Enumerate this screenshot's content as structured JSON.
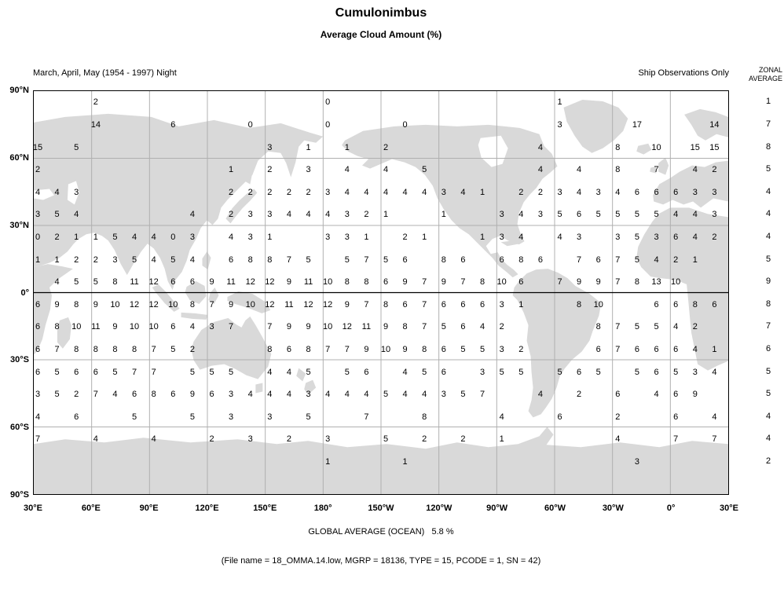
{
  "header": {
    "title": "Cumulonimbus",
    "subtitle": "Average Cloud Amount (%)",
    "period": "March, April, May (1954 - 1997) Night",
    "source": "Ship Observations Only",
    "zonal_line1": "ZONAL",
    "zonal_line2": "AVERAGE"
  },
  "footer": {
    "global_average": "GLOBAL AVERAGE (OCEAN)   5.8 %",
    "file_info": "(File name = 18_OMMA.14.low, MGRP = 18136, TYPE = 15, PCODE = 1, SN = 42)"
  },
  "colors": {
    "land": "#d9d9d9",
    "grid": "#b0b0b0",
    "equator": "#000000",
    "border": "#000000",
    "text": "#000000"
  },
  "chart_data": {
    "type": "heatmap",
    "title": "Cumulonimbus",
    "subtitle": "Average Cloud Amount (%)",
    "value_units": "% cloud amount",
    "column_definition": "column index n = longitude 30E + n x 10 degrees eastward (Pacific-centered map)",
    "lon_ticks": [
      "30°E",
      "60°E",
      "90°E",
      "120°E",
      "150°E",
      "180°",
      "150°W",
      "120°W",
      "90°W",
      "60°W",
      "30°W",
      "0°",
      "30°E"
    ],
    "lat_ticks": [
      "90°N",
      "60°N",
      "30°N",
      "0°",
      "30°S",
      "60°S",
      "90°S"
    ],
    "zonal_average_header": "ZONAL AVERAGE",
    "global_average_ocean": "5.8 %",
    "rows": [
      {
        "lat_band": "85N",
        "zonal_average": "1",
        "cells": {
          "3": "2",
          "15": "0",
          "27": "1"
        }
      },
      {
        "lat_band": "75N",
        "zonal_average": "7",
        "cells": {
          "3": "14",
          "7": "6",
          "11": "0",
          "15": "0",
          "19": "0",
          "27": "3",
          "31": "17",
          "35": "14"
        }
      },
      {
        "lat_band": "65N",
        "zonal_average": "8",
        "cells": {
          "0": "15",
          "2": "5",
          "12": "3",
          "14": "1",
          "16": "1",
          "18": "2",
          "26": "4",
          "30": "8",
          "32": "10",
          "34": "15",
          "35": "15"
        }
      },
      {
        "lat_band": "55N",
        "zonal_average": "5",
        "cells": {
          "0": "2",
          "10": "1",
          "12": "2",
          "14": "3",
          "16": "4",
          "18": "4",
          "20": "5",
          "26": "4",
          "28": "4",
          "30": "8",
          "32": "7",
          "34": "4",
          "35": "2"
        }
      },
      {
        "lat_band": "45N",
        "zonal_average": "4",
        "cells": {
          "0": "4",
          "1": "4",
          "2": "3",
          "10": "2",
          "11": "2",
          "12": "2",
          "13": "2",
          "14": "2",
          "15": "3",
          "16": "4",
          "17": "4",
          "18": "4",
          "19": "4",
          "20": "4",
          "21": "3",
          "22": "4",
          "23": "1",
          "25": "2",
          "26": "2",
          "27": "3",
          "28": "4",
          "29": "3",
          "30": "4",
          "31": "6",
          "32": "6",
          "33": "6",
          "34": "3",
          "35": "3"
        }
      },
      {
        "lat_band": "35N",
        "zonal_average": "4",
        "cells": {
          "0": "3",
          "1": "5",
          "2": "4",
          "8": "4",
          "10": "2",
          "11": "3",
          "12": "3",
          "13": "4",
          "14": "4",
          "15": "4",
          "16": "3",
          "17": "2",
          "18": "1",
          "21": "1",
          "24": "3",
          "25": "4",
          "26": "3",
          "27": "5",
          "28": "6",
          "29": "5",
          "30": "5",
          "31": "5",
          "32": "5",
          "33": "4",
          "34": "4",
          "35": "3"
        }
      },
      {
        "lat_band": "25N",
        "zonal_average": "4",
        "cells": {
          "0": "0",
          "1": "2",
          "2": "1",
          "3": "1",
          "4": "5",
          "5": "4",
          "6": "4",
          "7": "0",
          "8": "3",
          "10": "4",
          "11": "3",
          "12": "1",
          "15": "3",
          "16": "3",
          "17": "1",
          "19": "2",
          "20": "1",
          "23": "1",
          "24": "3",
          "25": "4",
          "27": "4",
          "28": "3",
          "30": "3",
          "31": "5",
          "32": "3",
          "33": "6",
          "34": "4",
          "35": "2"
        }
      },
      {
        "lat_band": "15N",
        "zonal_average": "5",
        "cells": {
          "0": "1",
          "1": "1",
          "2": "2",
          "3": "2",
          "4": "3",
          "5": "5",
          "6": "4",
          "7": "5",
          "8": "4",
          "10": "6",
          "11": "8",
          "12": "8",
          "13": "7",
          "14": "5",
          "16": "5",
          "17": "7",
          "18": "5",
          "19": "6",
          "21": "8",
          "22": "6",
          "24": "6",
          "25": "8",
          "26": "6",
          "28": "7",
          "29": "6",
          "30": "7",
          "31": "5",
          "32": "4",
          "33": "2",
          "34": "1"
        }
      },
      {
        "lat_band": "5N",
        "zonal_average": "9",
        "cells": {
          "1": "4",
          "2": "5",
          "3": "5",
          "4": "8",
          "5": "11",
          "6": "12",
          "7": "6",
          "8": "6",
          "9": "9",
          "10": "11",
          "11": "12",
          "12": "12",
          "13": "9",
          "14": "11",
          "15": "10",
          "16": "8",
          "17": "8",
          "18": "6",
          "19": "9",
          "20": "7",
          "21": "9",
          "22": "7",
          "23": "8",
          "24": "10",
          "25": "6",
          "27": "7",
          "28": "9",
          "29": "9",
          "30": "7",
          "31": "8",
          "32": "13",
          "33": "10"
        }
      },
      {
        "lat_band": "5S",
        "zonal_average": "8",
        "cells": {
          "0": "6",
          "1": "9",
          "2": "8",
          "3": "9",
          "4": "10",
          "5": "12",
          "6": "12",
          "7": "10",
          "8": "8",
          "9": "7",
          "10": "9",
          "11": "10",
          "12": "12",
          "13": "11",
          "14": "12",
          "15": "12",
          "16": "9",
          "17": "7",
          "18": "8",
          "19": "6",
          "20": "7",
          "21": "6",
          "22": "6",
          "23": "6",
          "24": "3",
          "25": "1",
          "28": "8",
          "29": "10",
          "32": "6",
          "33": "6",
          "34": "8",
          "35": "6"
        }
      },
      {
        "lat_band": "15S",
        "zonal_average": "7",
        "cells": {
          "0": "6",
          "1": "8",
          "2": "10",
          "3": "11",
          "4": "9",
          "5": "10",
          "6": "10",
          "7": "6",
          "8": "4",
          "9": "3",
          "10": "7",
          "12": "7",
          "13": "9",
          "14": "9",
          "15": "10",
          "16": "12",
          "17": "11",
          "18": "9",
          "19": "8",
          "20": "7",
          "21": "5",
          "22": "6",
          "23": "4",
          "24": "2",
          "29": "8",
          "30": "7",
          "31": "5",
          "32": "5",
          "33": "4",
          "34": "2"
        }
      },
      {
        "lat_band": "25S",
        "zonal_average": "6",
        "cells": {
          "0": "6",
          "1": "7",
          "2": "8",
          "3": "8",
          "4": "8",
          "5": "8",
          "6": "7",
          "7": "5",
          "8": "2",
          "12": "8",
          "13": "6",
          "14": "8",
          "15": "7",
          "16": "7",
          "17": "9",
          "18": "10",
          "19": "9",
          "20": "8",
          "21": "6",
          "22": "5",
          "23": "5",
          "24": "3",
          "25": "2",
          "29": "6",
          "30": "7",
          "31": "6",
          "32": "6",
          "33": "6",
          "34": "4",
          "35": "1"
        }
      },
      {
        "lat_band": "35S",
        "zonal_average": "5",
        "cells": {
          "0": "6",
          "1": "5",
          "2": "6",
          "3": "6",
          "4": "5",
          "5": "7",
          "6": "7",
          "8": "5",
          "9": "5",
          "10": "5",
          "12": "4",
          "13": "4",
          "14": "5",
          "16": "5",
          "17": "6",
          "19": "4",
          "20": "5",
          "21": "6",
          "23": "3",
          "24": "5",
          "25": "5",
          "27": "5",
          "28": "6",
          "29": "5",
          "31": "5",
          "32": "6",
          "33": "5",
          "34": "3",
          "35": "4"
        }
      },
      {
        "lat_band": "45S",
        "zonal_average": "5",
        "cells": {
          "0": "3",
          "1": "5",
          "2": "2",
          "3": "7",
          "4": "4",
          "5": "6",
          "6": "8",
          "7": "6",
          "8": "9",
          "9": "6",
          "10": "3",
          "11": "4",
          "12": "4",
          "13": "4",
          "14": "3",
          "15": "4",
          "16": "4",
          "17": "4",
          "18": "5",
          "19": "4",
          "20": "4",
          "21": "3",
          "22": "5",
          "23": "7",
          "26": "4",
          "28": "2",
          "30": "6",
          "32": "4",
          "33": "6",
          "34": "9"
        }
      },
      {
        "lat_band": "55S",
        "zonal_average": "4",
        "cells": {
          "0": "4",
          "2": "6",
          "5": "5",
          "8": "5",
          "10": "3",
          "12": "3",
          "14": "5",
          "17": "7",
          "20": "8",
          "24": "4",
          "27": "6",
          "30": "2",
          "33": "6",
          "35": "4"
        }
      },
      {
        "lat_band": "65S",
        "zonal_average": "4",
        "cells": {
          "0": "7",
          "3": "4",
          "6": "4",
          "9": "2",
          "11": "3",
          "13": "2",
          "15": "3",
          "18": "5",
          "20": "2",
          "22": "2",
          "24": "1",
          "30": "4",
          "33": "7",
          "35": "7"
        }
      },
      {
        "lat_band": "75S",
        "zonal_average": "2",
        "cells": {
          "15": "1",
          "19": "1",
          "31": "3"
        }
      }
    ]
  }
}
